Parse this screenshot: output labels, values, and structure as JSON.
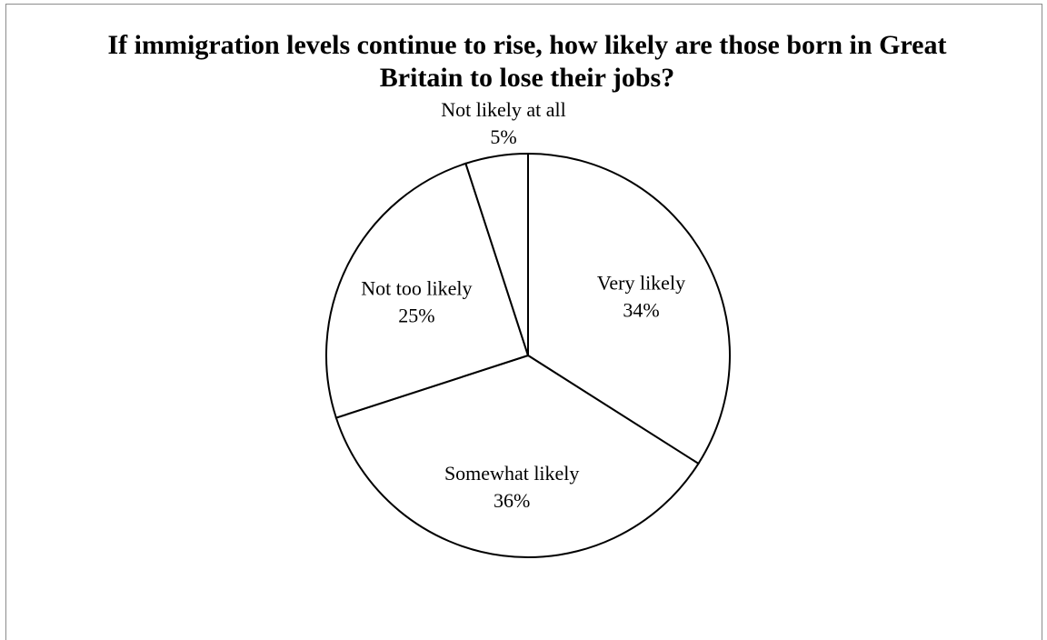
{
  "chart_data": {
    "type": "pie",
    "title": "If immigration levels continue to rise, how likely are those born in Great Britain to lose their jobs?",
    "categories": [
      "Very likely",
      "Somewhat likely",
      "Not too likely",
      "Not likely at all"
    ],
    "values": [
      34,
      36,
      25,
      5
    ],
    "value_labels": [
      "34%",
      "36%",
      "25%",
      "5%"
    ],
    "slice_color": "#ffffff",
    "stroke_color": "#000000",
    "legend": "none",
    "labels_inside": true
  }
}
